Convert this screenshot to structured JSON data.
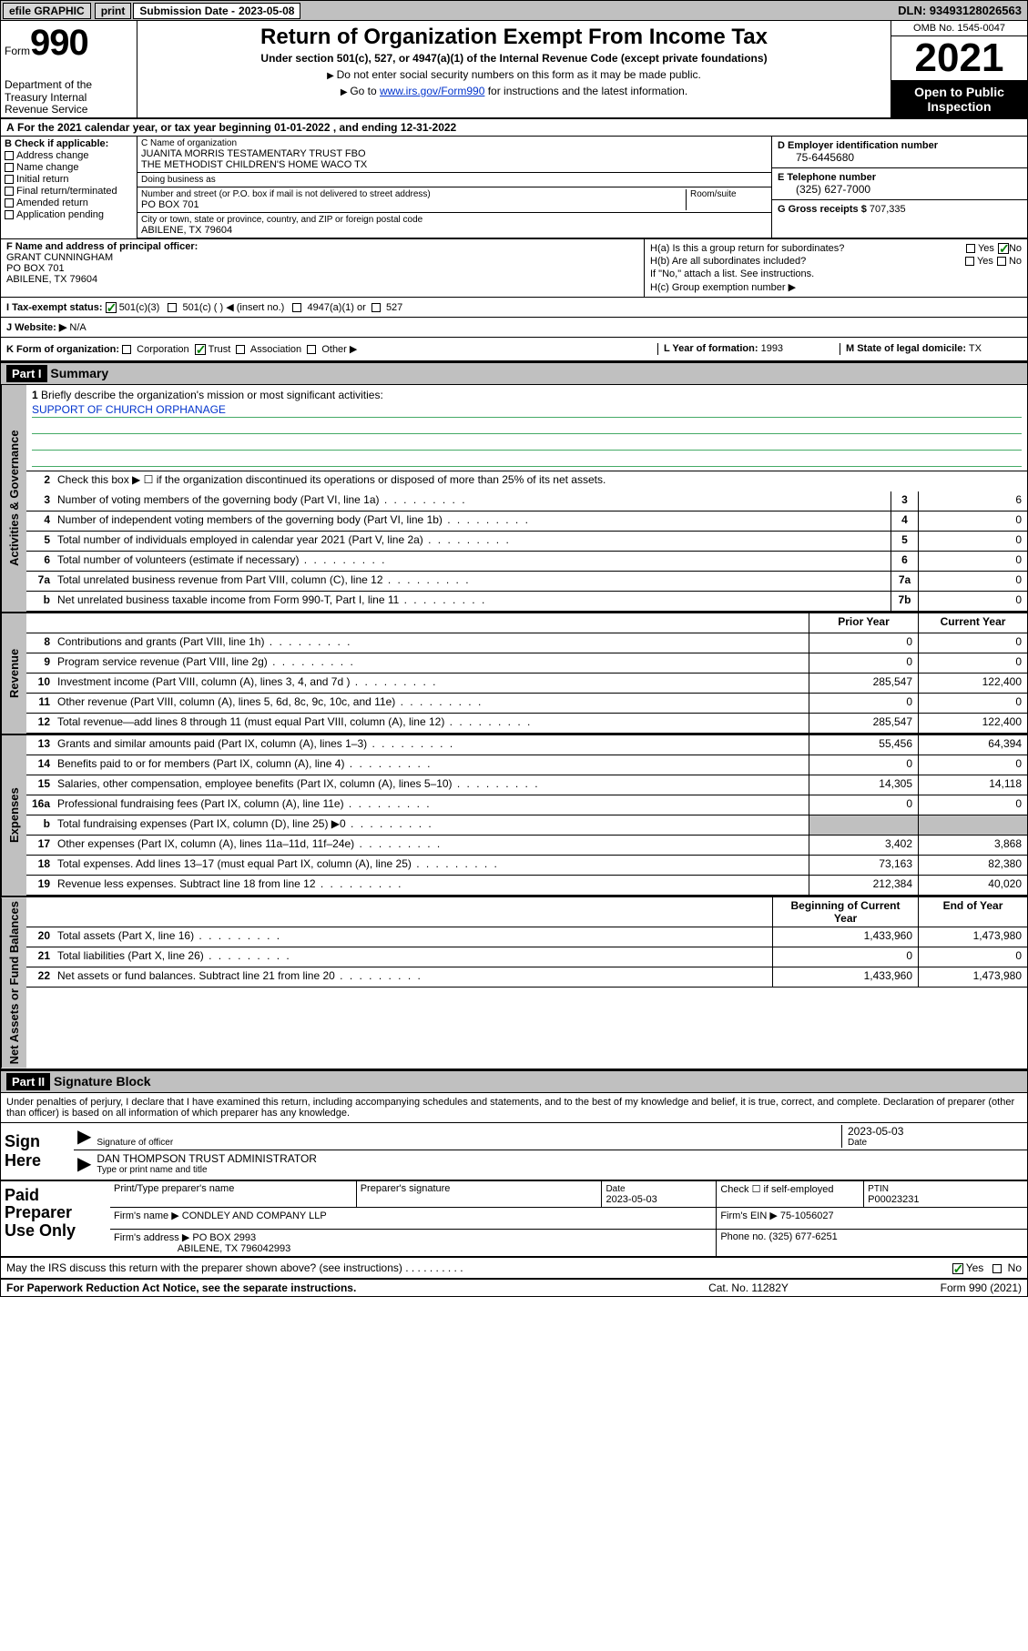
{
  "topbar": {
    "efile": "efile GRAPHIC",
    "print": "print",
    "sub_label": "Submission Date -",
    "sub_date": "2023-05-08",
    "dln": "DLN: 93493128026563"
  },
  "header": {
    "form_prefix": "Form",
    "form_num": "990",
    "dept": "Department of the Treasury\nInternal Revenue Service",
    "title": "Return of Organization Exempt From Income Tax",
    "subtitle": "Under section 501(c), 527, or 4947(a)(1) of the Internal Revenue Code (except private foundations)",
    "note1": "Do not enter social security numbers on this form as it may be made public.",
    "note2_pre": "Go to ",
    "note2_link": "www.irs.gov/Form990",
    "note2_post": " for instructions and the latest information.",
    "omb": "OMB No. 1545-0047",
    "year": "2021",
    "otp": "Open to Public Inspection"
  },
  "row_a": "For the 2021 calendar year, or tax year beginning 01-01-2022  , and ending 12-31-2022",
  "section_b": {
    "header": "B Check if applicable:",
    "items": [
      "Address change",
      "Name change",
      "Initial return",
      "Final return/terminated",
      "Amended return",
      "Application pending"
    ]
  },
  "section_c": {
    "name_label": "C Name of organization",
    "name1": "JUANITA MORRIS TESTAMENTARY TRUST FBO",
    "name2": "THE METHODIST CHILDREN'S HOME WACO TX",
    "dba_label": "Doing business as",
    "dba": "",
    "addr_label": "Number and street (or P.O. box if mail is not delivered to street address)",
    "room_label": "Room/suite",
    "addr": "PO BOX 701",
    "city_label": "City or town, state or province, country, and ZIP or foreign postal code",
    "city": "ABILENE, TX  79604"
  },
  "section_de": {
    "d_label": "D Employer identification number",
    "d_val": "75-6445680",
    "e_label": "E Telephone number",
    "e_val": "(325) 627-7000",
    "g_label": "G Gross receipts $",
    "g_val": "707,335"
  },
  "section_f": {
    "label": "F Name and address of principal officer:",
    "name": "GRANT CUNNINGHAM",
    "addr1": "PO BOX 701",
    "addr2": "ABILENE, TX  79604"
  },
  "section_h": {
    "ha_label": "H(a)  Is this a group return for subordinates?",
    "ha_yes": "Yes",
    "ha_no": "No",
    "hb_label": "H(b)  Are all subordinates included?",
    "hb_note": "If \"No,\" attach a list. See instructions.",
    "hc_label": "H(c)  Group exemption number ▶"
  },
  "section_i": {
    "label": "I  Tax-exempt status:",
    "opt1": "501(c)(3)",
    "opt2": "501(c) (   ) ◀ (insert no.)",
    "opt3": "4947(a)(1) or",
    "opt4": "527"
  },
  "section_j": {
    "label": "J  Website: ▶",
    "val": "N/A"
  },
  "section_k": {
    "label": "K Form of organization:",
    "opts": [
      "Corporation",
      "Trust",
      "Association",
      "Other ▶"
    ],
    "checked_idx": 1,
    "l_label": "L Year of formation:",
    "l_val": "1993",
    "m_label": "M State of legal domicile:",
    "m_val": "TX"
  },
  "part1": {
    "header": "Part I",
    "title": "Summary",
    "side_gov": "Activities & Governance",
    "side_rev": "Revenue",
    "side_exp": "Expenses",
    "side_net": "Net Assets or Fund Balances",
    "q1_label": "1",
    "q1_text": "Briefly describe the organization's mission or most significant activities:",
    "q1_val": "SUPPORT OF CHURCH ORPHANAGE",
    "q2": "Check this box ▶ ☐  if the organization discontinued its operations or disposed of more than 25% of its net assets.",
    "lines_gov": [
      {
        "n": "3",
        "t": "Number of voting members of the governing body (Part VI, line 1a)",
        "box": "3",
        "v": "6"
      },
      {
        "n": "4",
        "t": "Number of independent voting members of the governing body (Part VI, line 1b)",
        "box": "4",
        "v": "0"
      },
      {
        "n": "5",
        "t": "Total number of individuals employed in calendar year 2021 (Part V, line 2a)",
        "box": "5",
        "v": "0"
      },
      {
        "n": "6",
        "t": "Total number of volunteers (estimate if necessary)",
        "box": "6",
        "v": "0"
      },
      {
        "n": "7a",
        "t": "Total unrelated business revenue from Part VIII, column (C), line 12",
        "box": "7a",
        "v": "0"
      },
      {
        "n": "b",
        "t": "Net unrelated business taxable income from Form 990-T, Part I, line 11",
        "box": "7b",
        "v": "0"
      }
    ],
    "col_prior": "Prior Year",
    "col_current": "Current Year",
    "lines_rev": [
      {
        "n": "8",
        "t": "Contributions and grants (Part VIII, line 1h)",
        "p": "0",
        "c": "0"
      },
      {
        "n": "9",
        "t": "Program service revenue (Part VIII, line 2g)",
        "p": "0",
        "c": "0"
      },
      {
        "n": "10",
        "t": "Investment income (Part VIII, column (A), lines 3, 4, and 7d )",
        "p": "285,547",
        "c": "122,400"
      },
      {
        "n": "11",
        "t": "Other revenue (Part VIII, column (A), lines 5, 6d, 8c, 9c, 10c, and 11e)",
        "p": "0",
        "c": "0"
      },
      {
        "n": "12",
        "t": "Total revenue—add lines 8 through 11 (must equal Part VIII, column (A), line 12)",
        "p": "285,547",
        "c": "122,400"
      }
    ],
    "lines_exp": [
      {
        "n": "13",
        "t": "Grants and similar amounts paid (Part IX, column (A), lines 1–3)",
        "p": "55,456",
        "c": "64,394"
      },
      {
        "n": "14",
        "t": "Benefits paid to or for members (Part IX, column (A), line 4)",
        "p": "0",
        "c": "0"
      },
      {
        "n": "15",
        "t": "Salaries, other compensation, employee benefits (Part IX, column (A), lines 5–10)",
        "p": "14,305",
        "c": "14,118"
      },
      {
        "n": "16a",
        "t": "Professional fundraising fees (Part IX, column (A), line 11e)",
        "p": "0",
        "c": "0"
      },
      {
        "n": "b",
        "t": "Total fundraising expenses (Part IX, column (D), line 25) ▶0",
        "p": "",
        "c": "",
        "shade": true
      },
      {
        "n": "17",
        "t": "Other expenses (Part IX, column (A), lines 11a–11d, 11f–24e)",
        "p": "3,402",
        "c": "3,868"
      },
      {
        "n": "18",
        "t": "Total expenses. Add lines 13–17 (must equal Part IX, column (A), line 25)",
        "p": "73,163",
        "c": "82,380"
      },
      {
        "n": "19",
        "t": "Revenue less expenses. Subtract line 18 from line 12",
        "p": "212,384",
        "c": "40,020"
      }
    ],
    "col_begin": "Beginning of Current Year",
    "col_end": "End of Year",
    "lines_net": [
      {
        "n": "20",
        "t": "Total assets (Part X, line 16)",
        "p": "1,433,960",
        "c": "1,473,980"
      },
      {
        "n": "21",
        "t": "Total liabilities (Part X, line 26)",
        "p": "0",
        "c": "0"
      },
      {
        "n": "22",
        "t": "Net assets or fund balances. Subtract line 21 from line 20",
        "p": "1,433,960",
        "c": "1,473,980"
      }
    ]
  },
  "part2": {
    "header": "Part II",
    "title": "Signature Block",
    "perjury": "Under penalties of perjury, I declare that I have examined this return, including accompanying schedules and statements, and to the best of my knowledge and belief, it is true, correct, and complete. Declaration of preparer (other than officer) is based on all information of which preparer has any knowledge.",
    "sign_here": "Sign Here",
    "sig_officer_label": "Signature of officer",
    "sig_date": "2023-05-03",
    "date_label": "Date",
    "officer_name": "DAN THOMPSON TRUST ADMINISTRATOR",
    "officer_label": "Type or print name and title",
    "paid_prep": "Paid Preparer Use Only",
    "prep_name_label": "Print/Type preparer's name",
    "prep_sig_label": "Preparer's signature",
    "prep_date_label": "Date",
    "prep_date": "2023-05-03",
    "check_self": "Check ☐ if self-employed",
    "ptin_label": "PTIN",
    "ptin": "P00023231",
    "firm_name_label": "Firm's name    ▶",
    "firm_name": "CONDLEY AND COMPANY LLP",
    "firm_ein_label": "Firm's EIN ▶",
    "firm_ein": "75-1056027",
    "firm_addr_label": "Firm's address ▶",
    "firm_addr1": "PO BOX 2993",
    "firm_addr2": "ABILENE, TX  796042993",
    "phone_label": "Phone no.",
    "phone": "(325) 677-6251",
    "may_discuss": "May the IRS discuss this return with the preparer shown above? (see instructions)",
    "may_yes": "Yes",
    "may_no": "No"
  },
  "footer": {
    "left": "For Paperwork Reduction Act Notice, see the separate instructions.",
    "mid": "Cat. No. 11282Y",
    "right": "Form 990 (2021)"
  },
  "colors": {
    "header_bg": "#c0c0c0",
    "link": "#0033cc",
    "check": "#008000"
  }
}
